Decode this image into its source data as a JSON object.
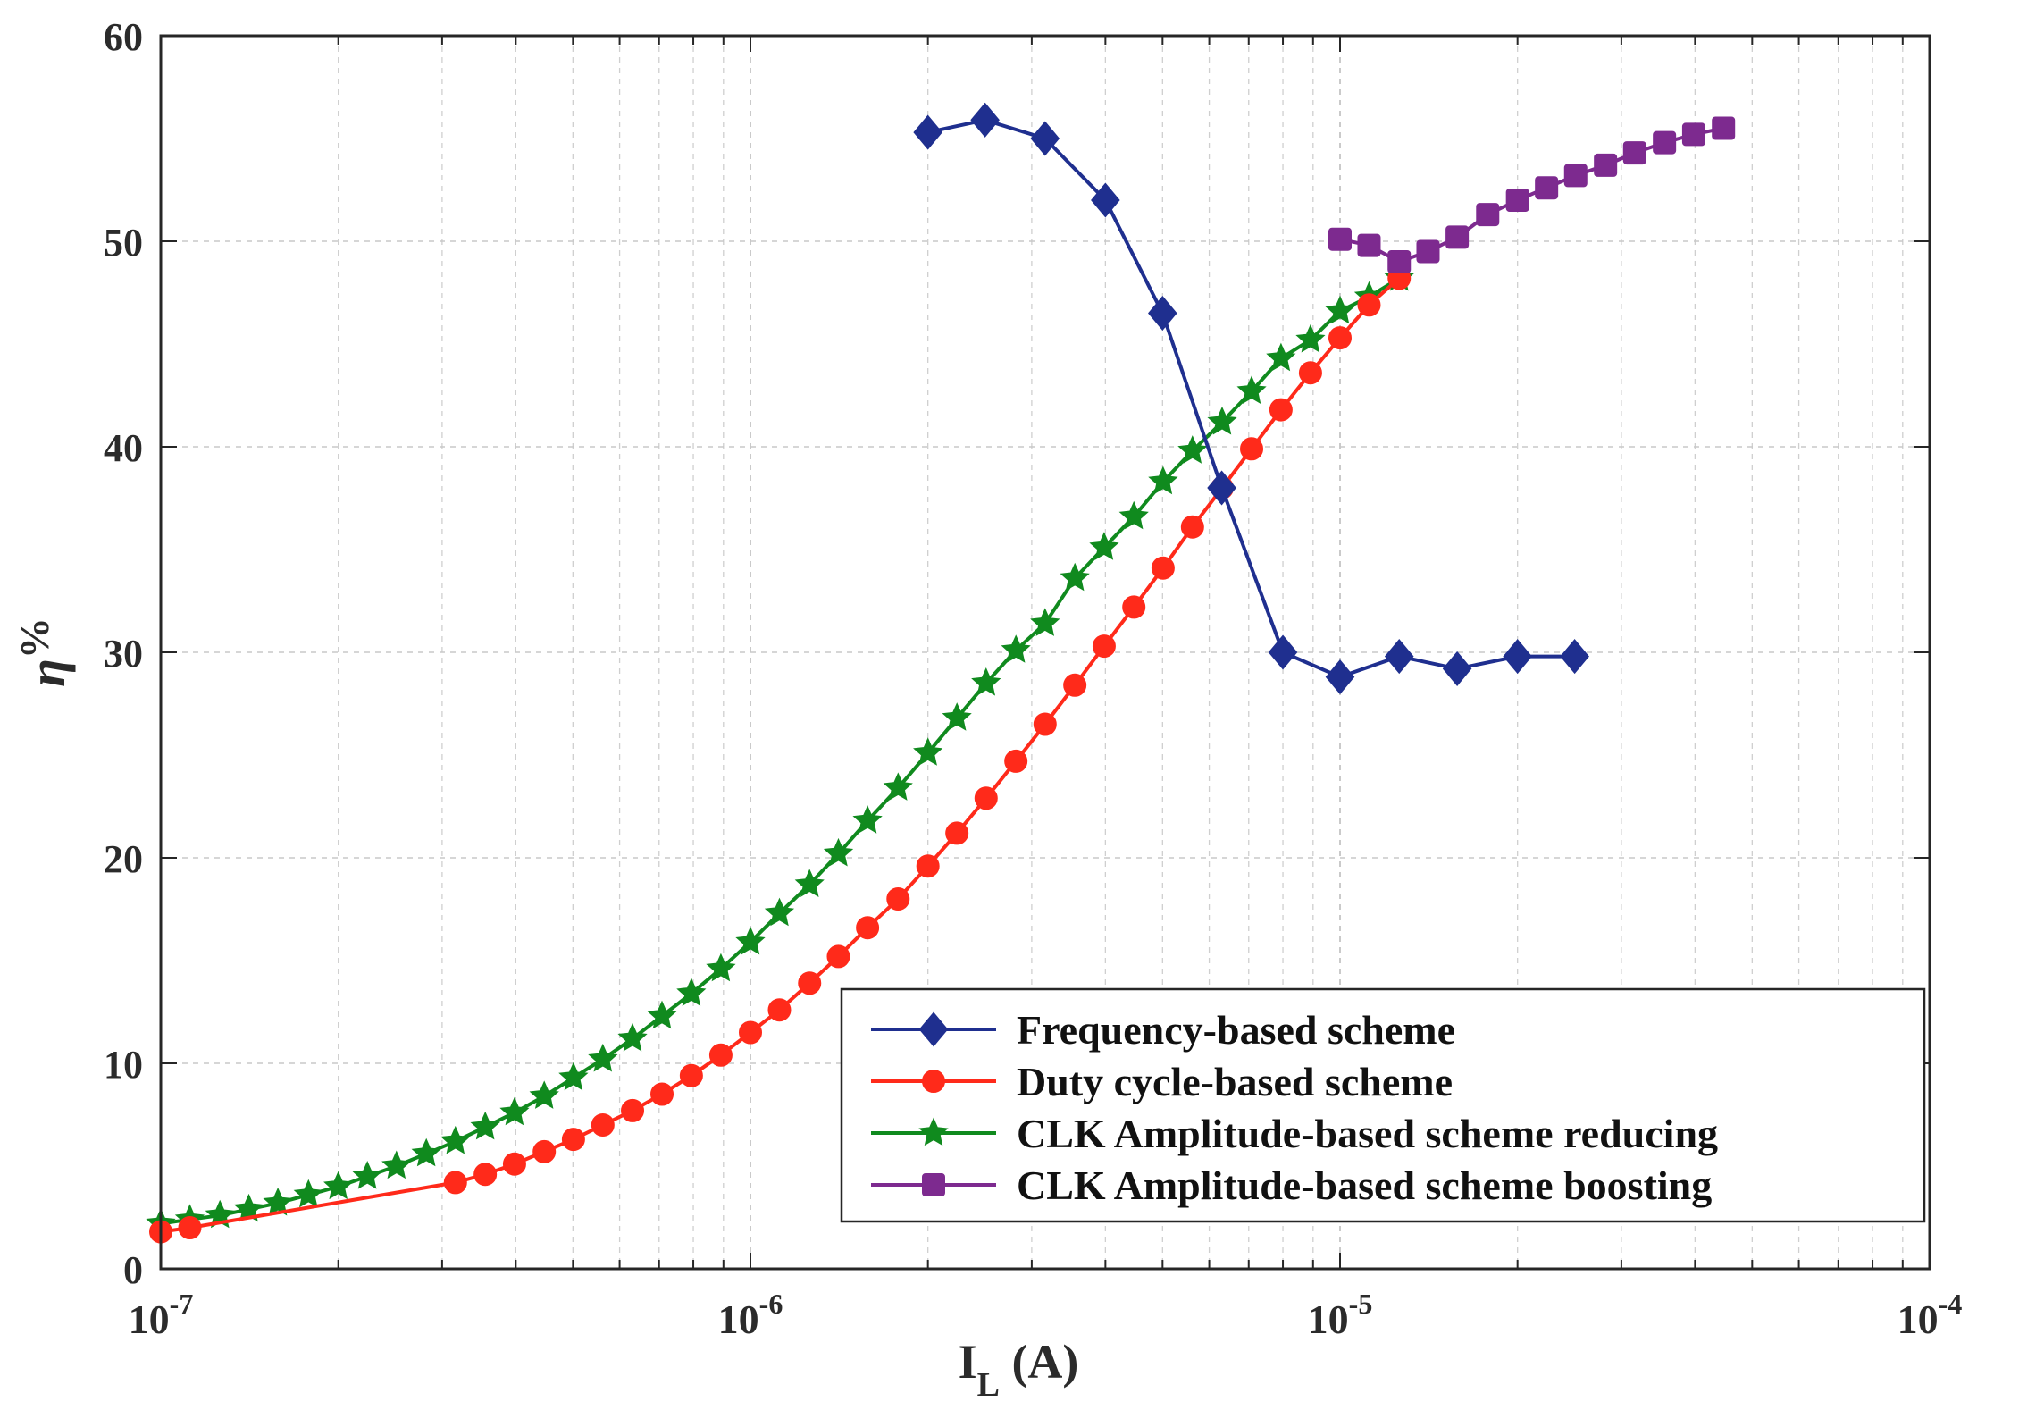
{
  "chart_data": {
    "type": "line",
    "xscale": "log",
    "xlabel": {
      "main": "I",
      "sub": "L",
      "unit": " (A)"
    },
    "ylabel": {
      "symbol": "η",
      "unit": "%"
    },
    "xlim": [
      1e-07,
      0.0001
    ],
    "ylim": [
      0,
      60
    ],
    "yticks": [
      "0",
      "10",
      "20",
      "30",
      "40",
      "50",
      "60"
    ],
    "xticks": [
      {
        "value": 1e-07,
        "base": "10",
        "exp": "-7"
      },
      {
        "value": 1e-06,
        "base": "10",
        "exp": "-6"
      },
      {
        "value": 1e-05,
        "base": "10",
        "exp": "-5"
      },
      {
        "value": 0.0001,
        "base": "10",
        "exp": "-4"
      }
    ],
    "grid": true,
    "legend_position": "bottom-right",
    "series": [
      {
        "name": "Frequency-based scheme",
        "color": "#1f2f8f",
        "marker": "diamond",
        "x": [
          2e-06,
          2.5e-06,
          3.16e-06,
          4e-06,
          5e-06,
          6.3e-06,
          8e-06,
          1e-05,
          1.26e-05,
          1.58e-05,
          2e-05,
          2.5e-05
        ],
        "y": [
          55.3,
          55.9,
          55.0,
          52.0,
          46.5,
          38.0,
          30.0,
          28.8,
          29.8,
          29.2,
          29.8,
          29.8
        ]
      },
      {
        "name": "Duty cycle-based scheme",
        "color": "#ff2a1a",
        "marker": "circle",
        "x": [
          1e-07,
          1.12e-07,
          3.16e-07,
          3.55e-07,
          3.98e-07,
          4.47e-07,
          5.01e-07,
          5.62e-07,
          6.31e-07,
          7.08e-07,
          7.94e-07,
          8.91e-07,
          1e-06,
          1.12e-06,
          1.26e-06,
          1.41e-06,
          1.58e-06,
          1.78e-06,
          2e-06,
          2.24e-06,
          2.51e-06,
          2.82e-06,
          3.16e-06,
          3.55e-06,
          3.98e-06,
          4.47e-06,
          5.01e-06,
          5.62e-06,
          6.31e-06,
          7.08e-06,
          7.94e-06,
          8.91e-06,
          1e-05,
          1.12e-05,
          1.26e-05
        ],
        "y": [
          1.8,
          2.0,
          4.2,
          4.6,
          5.1,
          5.7,
          6.3,
          7.0,
          7.7,
          8.5,
          9.4,
          10.4,
          11.5,
          12.6,
          13.9,
          15.2,
          16.6,
          18.0,
          19.6,
          21.2,
          22.9,
          24.7,
          26.5,
          28.4,
          30.3,
          32.2,
          34.1,
          36.1,
          38.0,
          39.9,
          41.8,
          43.6,
          45.3,
          46.9,
          48.2
        ]
      },
      {
        "name": "CLK Amplitude-based scheme reducing",
        "color": "#108a1e",
        "marker": "star",
        "x": [
          1e-07,
          1.12e-07,
          1.26e-07,
          1.41e-07,
          1.58e-07,
          1.78e-07,
          2e-07,
          2.24e-07,
          2.51e-07,
          2.82e-07,
          3.16e-07,
          3.55e-07,
          3.98e-07,
          4.47e-07,
          5.01e-07,
          5.62e-07,
          6.31e-07,
          7.08e-07,
          7.94e-07,
          8.91e-07,
          1e-06,
          1.12e-06,
          1.26e-06,
          1.41e-06,
          1.58e-06,
          1.78e-06,
          2e-06,
          2.24e-06,
          2.51e-06,
          2.82e-06,
          3.16e-06,
          3.55e-06,
          3.98e-06,
          4.47e-06,
          5.01e-06,
          5.62e-06,
          6.31e-06,
          7.08e-06,
          7.94e-06,
          8.91e-06,
          1e-05,
          1.12e-05,
          1.26e-05
        ],
        "y": [
          2.2,
          2.4,
          2.6,
          2.9,
          3.2,
          3.6,
          4.0,
          4.5,
          5.0,
          5.6,
          6.2,
          6.9,
          7.6,
          8.4,
          9.3,
          10.2,
          11.2,
          12.3,
          13.4,
          14.6,
          15.9,
          17.3,
          18.7,
          20.2,
          21.8,
          23.4,
          25.1,
          26.8,
          28.5,
          30.1,
          31.4,
          33.6,
          35.1,
          36.6,
          38.3,
          39.8,
          41.2,
          42.7,
          44.3,
          45.2,
          46.6,
          47.3,
          48.2
        ]
      },
      {
        "name": "CLK Amplitude-based scheme boosting",
        "color": "#7d2a8f",
        "marker": "square",
        "x": [
          1e-05,
          1.12e-05,
          1.26e-05,
          1.41e-05,
          1.58e-05,
          1.78e-05,
          2e-05,
          2.24e-05,
          2.51e-05,
          2.82e-05,
          3.16e-05,
          3.55e-05,
          3.98e-05,
          4.47e-05
        ],
        "y": [
          50.1,
          49.8,
          49.0,
          49.5,
          50.2,
          51.3,
          52.0,
          52.6,
          53.2,
          53.7,
          54.3,
          54.8,
          55.2,
          55.5
        ]
      }
    ]
  }
}
